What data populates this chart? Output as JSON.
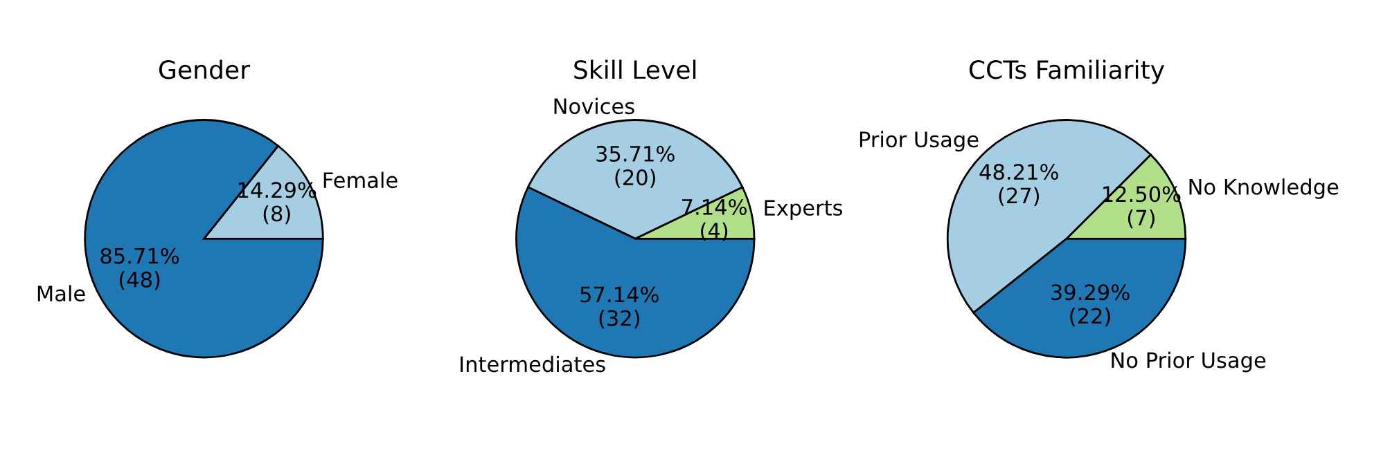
{
  "chart_data": [
    {
      "type": "pie",
      "title": "Gender",
      "categories": [
        "Female",
        "Male"
      ],
      "values": [
        8,
        48
      ],
      "colors": [
        "#a6cee3",
        "#1f78b4"
      ],
      "value_labels": [
        "14.29%\n(8)",
        "85.71%\n(48)"
      ]
    },
    {
      "type": "pie",
      "title": "Skill Level",
      "categories": [
        "Experts",
        "Novices",
        "Intermediates"
      ],
      "values": [
        4,
        20,
        32
      ],
      "colors": [
        "#b2df8a",
        "#a6cee3",
        "#1f78b4"
      ],
      "value_labels": [
        "7.14%\n(4)",
        "35.71%\n(20)",
        "57.14%\n(32)"
      ]
    },
    {
      "type": "pie",
      "title": "CCTs Familiarity",
      "categories": [
        "No Knowledge",
        "Prior Usage",
        "No Prior Usage"
      ],
      "values": [
        7,
        27,
        22
      ],
      "colors": [
        "#b2df8a",
        "#a6cee3",
        "#1f78b4"
      ],
      "value_labels": [
        "12.50%\n(7)",
        "48.21%\n(27)",
        "39.29%\n(22)"
      ]
    }
  ]
}
